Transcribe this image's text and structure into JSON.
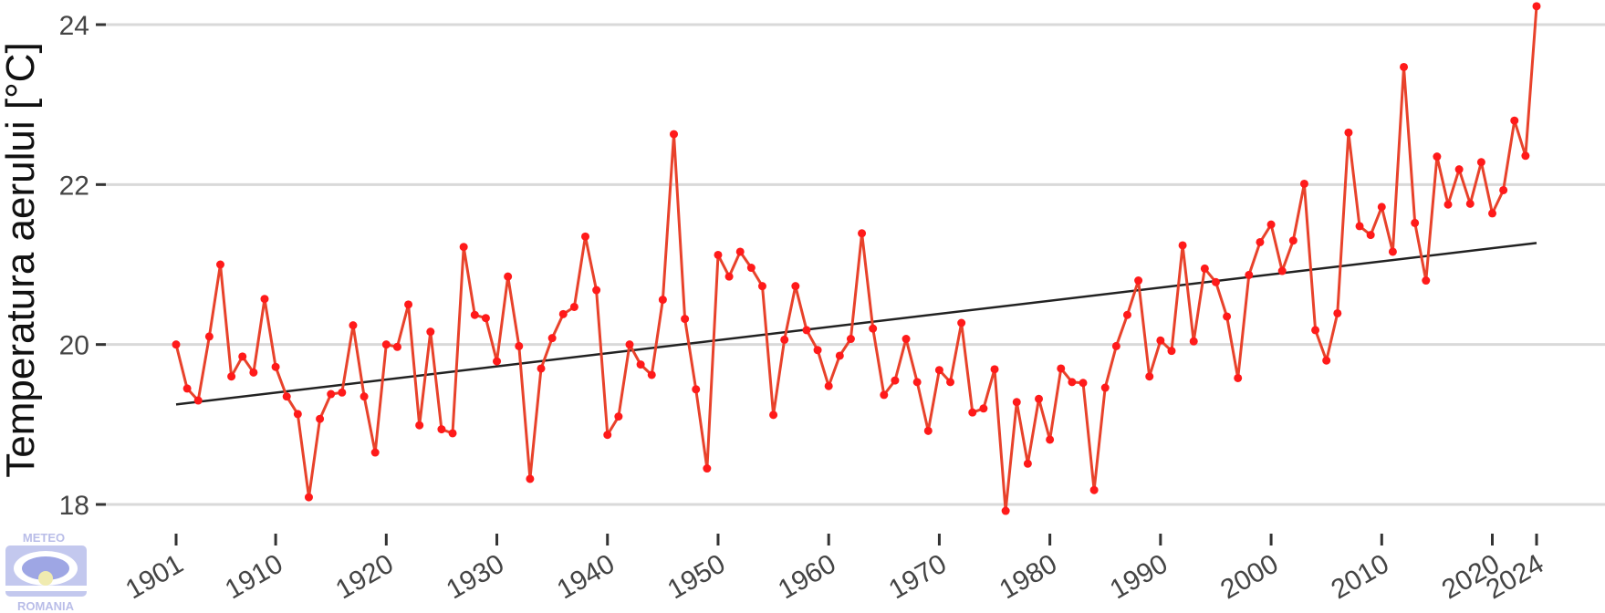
{
  "chart_data": {
    "type": "line",
    "title": "",
    "xlabel": "",
    "ylabel": "Temperatura aerului [°C]",
    "xlim": [
      1901,
      2024
    ],
    "ylim": [
      18,
      24
    ],
    "yticks": [
      18,
      20,
      22,
      24
    ],
    "xticks": [
      1901,
      1910,
      1920,
      1930,
      1940,
      1950,
      1960,
      1970,
      1980,
      1990,
      2000,
      2010,
      2020,
      2024
    ],
    "grid": "horizontal",
    "line_color": "#e8422b",
    "point_color": "#ff1a1a",
    "trend_color": "#222222",
    "series": [
      {
        "type": "line+markers",
        "x": [
          1901,
          1902,
          1903,
          1904,
          1905,
          1906,
          1907,
          1908,
          1909,
          1910,
          1911,
          1912,
          1913,
          1914,
          1915,
          1916,
          1917,
          1918,
          1919,
          1920,
          1921,
          1922,
          1923,
          1924,
          1925,
          1926,
          1927,
          1928,
          1929,
          1930,
          1931,
          1932,
          1933,
          1934,
          1935,
          1936,
          1937,
          1938,
          1939,
          1940,
          1941,
          1942,
          1943,
          1944,
          1945,
          1946,
          1947,
          1948,
          1949,
          1950,
          1951,
          1952,
          1953,
          1954,
          1955,
          1956,
          1957,
          1958,
          1959,
          1960,
          1961,
          1962,
          1963,
          1964,
          1965,
          1966,
          1967,
          1968,
          1969,
          1970,
          1971,
          1972,
          1973,
          1974,
          1975,
          1976,
          1977,
          1978,
          1979,
          1980,
          1981,
          1982,
          1983,
          1984,
          1985,
          1986,
          1987,
          1988,
          1989,
          1990,
          1991,
          1992,
          1993,
          1994,
          1995,
          1996,
          1997,
          1998,
          1999,
          2000,
          2001,
          2002,
          2003,
          2004,
          2005,
          2006,
          2007,
          2008,
          2009,
          2010,
          2011,
          2012,
          2013,
          2014,
          2015,
          2016,
          2017,
          2018,
          2019,
          2020,
          2021,
          2022,
          2023,
          2024
        ],
        "y": [
          20.0,
          19.45,
          19.3,
          20.1,
          21.0,
          19.6,
          19.85,
          19.65,
          20.57,
          19.72,
          19.35,
          19.13,
          18.09,
          19.07,
          19.38,
          19.4,
          20.24,
          19.35,
          18.65,
          20.0,
          19.97,
          20.5,
          18.99,
          20.16,
          18.94,
          18.89,
          21.22,
          20.37,
          20.33,
          19.79,
          20.85,
          19.98,
          18.32,
          19.7,
          20.08,
          20.38,
          20.47,
          21.35,
          20.68,
          18.87,
          19.1,
          20.0,
          19.75,
          19.62,
          20.56,
          22.63,
          20.32,
          19.44,
          18.45,
          21.12,
          20.85,
          21.16,
          20.96,
          20.73,
          19.12,
          20.06,
          20.73,
          20.18,
          19.93,
          19.48,
          19.86,
          20.07,
          21.39,
          20.2,
          19.37,
          19.55,
          20.07,
          19.53,
          18.92,
          19.68,
          19.53,
          20.27,
          19.15,
          19.2,
          19.69,
          17.92,
          19.28,
          18.51,
          19.32,
          18.81,
          19.7,
          19.53,
          19.52,
          18.18,
          19.46,
          19.98,
          20.37,
          20.8,
          19.6,
          20.05,
          19.92,
          21.24,
          20.04,
          20.95,
          20.78,
          20.35,
          19.58,
          20.87,
          21.28,
          21.5,
          20.92,
          21.3,
          22.01,
          20.18,
          19.8,
          20.39,
          22.65,
          21.48,
          21.37,
          21.72,
          21.16,
          23.47,
          21.52,
          20.8,
          22.35,
          21.75,
          22.19,
          21.76,
          22.28,
          21.64,
          21.93,
          22.8,
          22.36,
          24.23
        ]
      },
      {
        "type": "trend",
        "x": [
          1901,
          2024
        ],
        "y": [
          19.25,
          21.27
        ]
      }
    ]
  },
  "watermark": {
    "top_text": "METEO",
    "bottom_text": "ROMANIA",
    "color": "#b9bde8"
  }
}
